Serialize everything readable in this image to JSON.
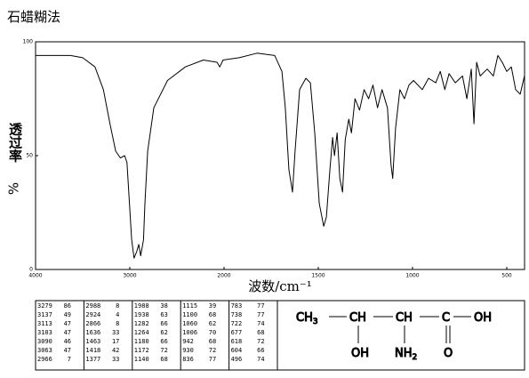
{
  "chart_data": {
    "type": "line",
    "title": "石蜡糊法",
    "xlabel": "波数/cm⁻¹",
    "ylabel": "透过率",
    "ylabel_unit": "%",
    "xlim": [
      4000,
      400
    ],
    "xticks": [
      4000,
      3000,
      2000,
      1500,
      1000,
      500
    ],
    "ylim": [
      0,
      100
    ],
    "yticks": [
      0,
      50,
      100
    ],
    "color": "#000000",
    "x": [
      4000,
      3800,
      3630,
      3500,
      3370,
      3280,
      3210,
      3150,
      3100,
      3055,
      3030,
      2980,
      2955,
      2925,
      2905,
      2885,
      2855,
      2840,
      2810,
      2745,
      2600,
      2410,
      2220,
      2075,
      2045,
      2010,
      1920,
      1825,
      1731,
      1693,
      1675,
      1656,
      1637,
      1623,
      1599,
      1566,
      1542,
      1519,
      1495,
      1471,
      1457,
      1438,
      1424,
      1414,
      1400,
      1386,
      1371,
      1357,
      1338,
      1324,
      1305,
      1281,
      1257,
      1233,
      1210,
      1186,
      1162,
      1133,
      1114,
      1105,
      1090,
      1067,
      1043,
      1019,
      995,
      948,
      915,
      877,
      853,
      829,
      806,
      773,
      735,
      712,
      688,
      674,
      660,
      641,
      604,
      571,
      547,
      524,
      500,
      476,
      453,
      429,
      406
    ],
    "values": [
      94,
      94,
      94,
      93,
      89,
      79,
      64,
      52,
      49,
      50,
      47,
      13,
      5,
      8,
      11,
      6,
      13,
      29,
      52,
      71,
      83,
      89,
      92,
      91,
      89,
      92,
      93,
      95,
      94,
      87,
      71,
      44,
      34,
      52,
      79,
      84,
      82,
      60,
      29,
      19,
      23,
      44,
      58,
      50,
      60,
      40,
      34,
      57,
      66,
      60,
      75,
      70,
      79,
      75,
      81,
      71,
      79,
      71,
      46,
      40,
      62,
      79,
      75,
      81,
      83,
      79,
      84,
      82,
      87,
      79,
      86,
      82,
      85,
      75,
      88,
      64,
      91,
      85,
      88,
      85,
      94,
      91,
      87,
      89,
      79,
      77,
      85
    ]
  },
  "peaks": [
    [
      [
        3279,
        86
      ],
      [
        3137,
        49
      ],
      [
        3113,
        47
      ],
      [
        3103,
        47
      ],
      [
        3090,
        46
      ],
      [
        3063,
        47
      ],
      [
        2966,
        7
      ]
    ],
    [
      [
        2988,
        8
      ],
      [
        2924,
        4
      ],
      [
        2866,
        8
      ],
      [
        1636,
        33
      ],
      [
        1463,
        17
      ],
      [
        1418,
        42
      ],
      [
        1377,
        33
      ]
    ],
    [
      [
        1988,
        38
      ],
      [
        1938,
        63
      ],
      [
        1282,
        66
      ],
      [
        1264,
        62
      ],
      [
        1180,
        66
      ],
      [
        1172,
        72
      ],
      [
        1140,
        68
      ]
    ],
    [
      [
        1115,
        39
      ],
      [
        1100,
        68
      ],
      [
        1060,
        62
      ],
      [
        1006,
        70
      ],
      [
        942,
        68
      ],
      [
        930,
        72
      ],
      [
        836,
        77
      ]
    ],
    [
      [
        783,
        77
      ],
      [
        738,
        77
      ],
      [
        722,
        74
      ],
      [
        677,
        68
      ],
      [
        618,
        72
      ],
      [
        604,
        66
      ],
      [
        496,
        74
      ]
    ]
  ],
  "structure": {
    "groups": [
      {
        "text": "CH",
        "sub": "3"
      },
      {
        "text": "CH"
      },
      {
        "text": "CH"
      },
      {
        "text": "C"
      },
      {
        "text": "OH"
      }
    ],
    "substituents": [
      {
        "text": "OH"
      },
      {
        "text": "NH",
        "sub": "2"
      },
      {
        "text": "O"
      }
    ]
  }
}
